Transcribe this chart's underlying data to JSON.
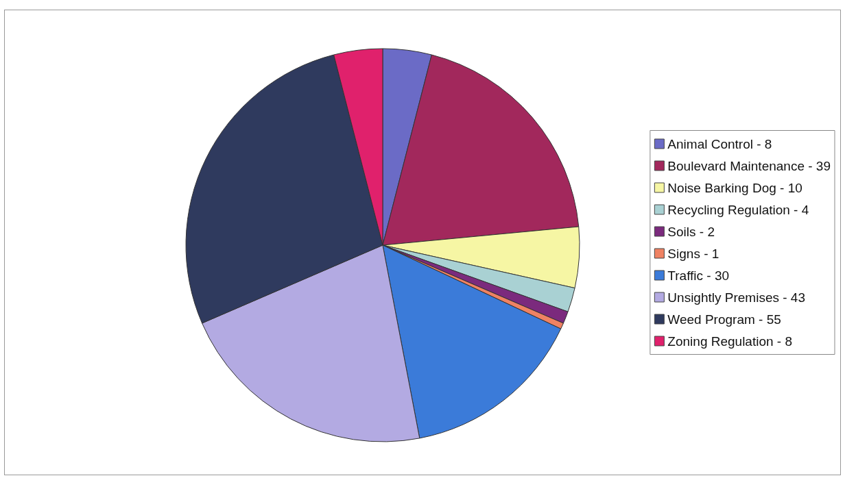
{
  "chart_data": {
    "type": "pie",
    "categories": [
      "Animal Control - 8",
      "Boulevard Maintenance - 39",
      "Noise Barking Dog - 10",
      "Recycling Regulation - 4",
      "Soils - 2",
      "Signs - 1",
      "Traffic - 30",
      "Unsightly Premises - 43",
      "Weed Program - 55",
      "Zoning Regulation - 8"
    ],
    "values": [
      4,
      19.5,
      5,
      2,
      1,
      0.5,
      15,
      21.5,
      27.5,
      4
    ],
    "colors": [
      "#6b6bc6",
      "#a2285c",
      "#f6f6a4",
      "#a9d1d3",
      "#7b2a7d",
      "#ef8263",
      "#3b7bd9",
      "#b3aae2",
      "#2f3a5e",
      "#e0216c"
    ],
    "legend": "right"
  }
}
